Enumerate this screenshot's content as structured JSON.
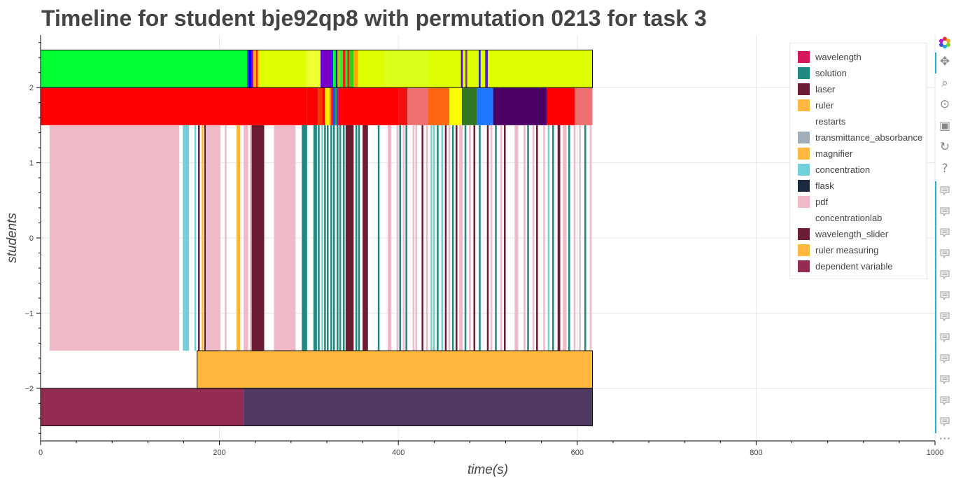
{
  "title": "Timeline for student bje92qp8 with permutation 0213 for task 3",
  "chart_data": {
    "type": "timeline",
    "title": "Timeline for student bje92qp8 with permutation 0213 for task 3",
    "xlabel": "time(s)",
    "ylabel": "students",
    "xlim": [
      0,
      1000
    ],
    "ylim": [
      -2.7,
      2.7
    ],
    "x_ticks": [
      0,
      200,
      400,
      600,
      800,
      1000
    ],
    "x_tick_labels": [
      "0",
      "200",
      "400",
      "600",
      "800",
      "1000"
    ],
    "y_ticks": [
      -2,
      -1,
      0,
      1,
      2
    ],
    "y_tick_labels": [
      "−2",
      "−1",
      "0",
      "1",
      "2"
    ],
    "grid": true,
    "legend_position": "top-right",
    "legend": [
      {
        "label": "wavelength",
        "color": "#d6185d"
      },
      {
        "label": "solution",
        "color": "#218a80"
      },
      {
        "label": "laser",
        "color": "#6b1d33"
      },
      {
        "label": "ruler",
        "color": "#ffb740"
      },
      {
        "label": "restarts",
        "color": "none"
      },
      {
        "label": "transmittance_absorbance",
        "color": "#a1aeb9"
      },
      {
        "label": "magnifier",
        "color": "#ffb740"
      },
      {
        "label": "concentration",
        "color": "#73d0da"
      },
      {
        "label": "flask",
        "color": "#1c2a40"
      },
      {
        "label": "pdf",
        "color": "#efb9c8"
      },
      {
        "label": "concentrationlab",
        "color": "none"
      },
      {
        "label": "wavelength_slider",
        "color": "#6b1d33"
      },
      {
        "label": "ruler measuring",
        "color": "#ffb740"
      },
      {
        "label": "dependent variable",
        "color": "#932b52"
      }
    ],
    "rows": [
      {
        "y0": 2,
        "y1": 2.5,
        "segments": [
          [
            0,
            231,
            "#00ff33"
          ],
          [
            231,
            233,
            "#3322cc"
          ],
          [
            233,
            236,
            "#0000ff"
          ],
          [
            236,
            238,
            "#aa00cc"
          ],
          [
            238,
            241,
            "#ffaa00"
          ],
          [
            241,
            243,
            "#ff3300"
          ],
          [
            243,
            245,
            "#ffee00"
          ],
          [
            245,
            297,
            "#ddff00"
          ],
          [
            297,
            313,
            "#eeff33"
          ],
          [
            313,
            315,
            "#5500cc"
          ],
          [
            315,
            325,
            "#7700cc"
          ],
          [
            325,
            327,
            "#3300ff"
          ],
          [
            327,
            330,
            "#00ff33"
          ],
          [
            330,
            332,
            "#222288"
          ],
          [
            332,
            335,
            "#aacc00"
          ],
          [
            335,
            338,
            "#22ee33"
          ],
          [
            338,
            341,
            "#ff2200"
          ],
          [
            341,
            343,
            "#00ff44"
          ],
          [
            343,
            345,
            "#dd2200"
          ],
          [
            345,
            350,
            "#33cc11"
          ],
          [
            350,
            355,
            "#ffaa00"
          ],
          [
            355,
            385,
            "#ddff00"
          ],
          [
            385,
            435,
            "#dcff1a"
          ],
          [
            435,
            470,
            "#ddff00"
          ],
          [
            470,
            472,
            "#5500dd"
          ],
          [
            472,
            475,
            "#ddff00"
          ],
          [
            475,
            477,
            "#7722bb"
          ],
          [
            477,
            490,
            "#ddff00"
          ],
          [
            490,
            492,
            "#1111dd"
          ],
          [
            492,
            497,
            "#ddff00"
          ],
          [
            497,
            500,
            "#5522cc"
          ],
          [
            500,
            617,
            "#ddff00"
          ]
        ]
      },
      {
        "y0": 1.5,
        "y1": 2,
        "segments": [
          [
            0,
            298,
            "#ff0000"
          ],
          [
            298,
            310,
            "#ff0000"
          ],
          [
            310,
            315,
            "#ff3300"
          ],
          [
            315,
            318,
            "#ff0000"
          ],
          [
            318,
            323,
            "#ffee00"
          ],
          [
            323,
            325,
            "#ff7700"
          ],
          [
            325,
            327,
            "#ff0000"
          ],
          [
            327,
            329,
            "#2244ff"
          ],
          [
            329,
            331,
            "#22aa33"
          ],
          [
            331,
            333,
            "#8822cc"
          ],
          [
            333,
            400,
            "#ff0000"
          ],
          [
            400,
            410,
            "#ee1111"
          ],
          [
            410,
            433,
            "#ee7070"
          ],
          [
            433,
            457,
            "#ff6611"
          ],
          [
            457,
            471,
            "#ffff00"
          ],
          [
            471,
            488,
            "#337722"
          ],
          [
            488,
            506,
            "#1e77ff"
          ],
          [
            506,
            566,
            "#4b0066"
          ],
          [
            566,
            597,
            "#ff0000"
          ],
          [
            597,
            617,
            "#ee7070"
          ]
        ]
      },
      {
        "y0": -1.5,
        "y1": 1.5,
        "segments": [
          [
            10,
            155,
            "#efb9c8"
          ],
          [
            159,
            166,
            "#73d0da"
          ],
          [
            172,
            174,
            "#73d0da"
          ],
          [
            176,
            178,
            "#6b1d33"
          ],
          [
            180,
            182,
            "#ffb740"
          ],
          [
            183,
            185,
            "#6b1d33"
          ],
          [
            186,
            201,
            "#efb9c8"
          ],
          [
            206,
            208,
            "#efb9c8"
          ],
          [
            219,
            223,
            "#ffb740"
          ],
          [
            227,
            232,
            "#efb9c8"
          ],
          [
            234,
            236,
            "#efb9c8"
          ],
          [
            236,
            250,
            "#6b1d33"
          ],
          [
            261,
            285,
            "#efb9c8"
          ],
          [
            292,
            298,
            "#218a80"
          ],
          [
            305,
            309,
            "#218a80"
          ],
          [
            310,
            312,
            "#218a80"
          ],
          [
            314,
            316,
            "#73d0da"
          ],
          [
            317,
            319,
            "#218a80"
          ],
          [
            320,
            322,
            "#218a80"
          ],
          [
            324,
            326,
            "#218a80"
          ],
          [
            327,
            329,
            "#218a80"
          ],
          [
            331,
            333,
            "#218a80"
          ],
          [
            334,
            336,
            "#218a80"
          ],
          [
            338,
            340,
            "#218a80"
          ],
          [
            341,
            350,
            "#6b1d33"
          ],
          [
            352,
            354,
            "#218a80"
          ],
          [
            355,
            357,
            "#218a80"
          ],
          [
            360,
            366,
            "#6b1d33"
          ],
          [
            377,
            379,
            "#218a80"
          ],
          [
            388,
            392,
            "#efb9c8"
          ],
          [
            398,
            400,
            "#efb9c8"
          ],
          [
            401,
            403,
            "#218a80"
          ],
          [
            405,
            407,
            "#efb9c8"
          ],
          [
            408,
            410,
            "#218a80"
          ],
          [
            416,
            418,
            "#efb9c8"
          ],
          [
            419,
            421,
            "#efb9c8"
          ],
          [
            426,
            428,
            "#6b1d33"
          ],
          [
            431,
            433,
            "#efb9c8"
          ],
          [
            436,
            438,
            "#73d0da"
          ],
          [
            439,
            441,
            "#73d0da"
          ],
          [
            443,
            445,
            "#218a80"
          ],
          [
            448,
            450,
            "#73d0da"
          ],
          [
            452,
            454,
            "#6b1d33"
          ],
          [
            456,
            458,
            "#efb9c8"
          ],
          [
            460,
            462,
            "#218a80"
          ],
          [
            464,
            466,
            "#6b1d33"
          ],
          [
            468,
            472,
            "#efb9c8"
          ],
          [
            474,
            476,
            "#218a80"
          ],
          [
            479,
            481,
            "#efb9c8"
          ],
          [
            484,
            486,
            "#6b1d33"
          ],
          [
            490,
            492,
            "#218a80"
          ],
          [
            499,
            501,
            "#6b1d33"
          ],
          [
            503,
            505,
            "#efb9c8"
          ],
          [
            508,
            510,
            "#218a80"
          ],
          [
            514,
            516,
            "#efb9c8"
          ],
          [
            518,
            520,
            "#6b1d33"
          ],
          [
            530,
            534,
            "#efb9c8"
          ],
          [
            540,
            542,
            "#efb9c8"
          ],
          [
            544,
            546,
            "#218a80"
          ],
          [
            550,
            552,
            "#efb9c8"
          ],
          [
            554,
            556,
            "#6b1d33"
          ],
          [
            562,
            564,
            "#efb9c8"
          ],
          [
            567,
            569,
            "#73d0da"
          ],
          [
            572,
            574,
            "#218a80"
          ],
          [
            578,
            581,
            "#6b1d33"
          ],
          [
            584,
            588,
            "#efb9c8"
          ],
          [
            590,
            592,
            "#218a80"
          ],
          [
            596,
            598,
            "#efb9c8"
          ],
          [
            602,
            604,
            "#efb9c8"
          ],
          [
            608,
            610,
            "#218a80"
          ],
          [
            614,
            616,
            "#efb9c8"
          ]
        ]
      },
      {
        "y0": -2,
        "y1": -1.5,
        "segments": [
          [
            175,
            617,
            "#ffb740"
          ]
        ]
      },
      {
        "y0": -2.5,
        "y1": -2,
        "segments": [
          [
            0,
            227,
            "#932b52"
          ],
          [
            227,
            617,
            "#4f3962"
          ]
        ]
      }
    ],
    "outlined_rects": [
      [
        0,
        617,
        2,
        2.5
      ],
      [
        175,
        617,
        -2,
        -1.5
      ],
      [
        0,
        617,
        -2.5,
        -2
      ]
    ]
  },
  "toolbar": {
    "tools": [
      {
        "name": "bokeh-logo-icon"
      },
      {
        "name": "pan-icon"
      },
      {
        "name": "box-zoom-icon"
      },
      {
        "name": "wheel-zoom-icon"
      },
      {
        "name": "save-icon"
      },
      {
        "name": "reset-icon"
      },
      {
        "name": "help-icon"
      },
      {
        "name": "hover-icon"
      },
      {
        "name": "hover-icon"
      },
      {
        "name": "hover-icon"
      },
      {
        "name": "hover-icon"
      },
      {
        "name": "hover-icon"
      },
      {
        "name": "hover-icon"
      },
      {
        "name": "hover-icon"
      },
      {
        "name": "hover-icon"
      },
      {
        "name": "hover-icon"
      },
      {
        "name": "hover-icon"
      },
      {
        "name": "hover-icon"
      },
      {
        "name": "hover-icon"
      },
      {
        "name": "more-icon"
      }
    ]
  }
}
